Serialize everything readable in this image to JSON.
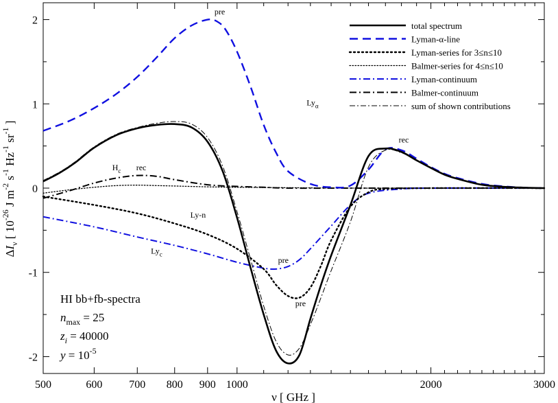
{
  "chart_data": {
    "type": "line",
    "title": "",
    "xlabel": "ν [ GHz ]",
    "ylabel": "ΔIν [ 10^-26 J m^-2 s^-1 Hz^-1 sr^-1 ]",
    "x_scale": "log",
    "xlim": [
      500,
      3000
    ],
    "ylim": [
      -2.2,
      2.2
    ],
    "x_ticks": [
      {
        "value": 500,
        "label": "500"
      },
      {
        "value": 600,
        "label": "600"
      },
      {
        "value": 700,
        "label": "700"
      },
      {
        "value": 800,
        "label": "800"
      },
      {
        "value": 900,
        "label": "900"
      },
      {
        "value": 1000,
        "label": "1000"
      },
      {
        "value": 2000,
        "label": "2000"
      },
      {
        "value": 3000,
        "label": "3000"
      }
    ],
    "x_minor_ticks": [
      1100,
      1200,
      1300,
      1400,
      1500,
      1600,
      1700,
      1800,
      1900,
      2100,
      2200,
      2300,
      2400,
      2500,
      2600,
      2700,
      2800,
      2900
    ],
    "y_ticks": [
      {
        "value": 2,
        "label": "2"
      },
      {
        "value": 1,
        "label": "1"
      },
      {
        "value": 0,
        "label": "0"
      },
      {
        "value": -1,
        "label": "-1"
      },
      {
        "value": -2,
        "label": "-2"
      }
    ],
    "y_minor_ticks": [
      -1.5,
      -0.5,
      0.5,
      1.5
    ],
    "series": [
      {
        "name": "total spectrum",
        "color": "#000000",
        "style": "solid-thick",
        "x": [
          500,
          530,
          560,
          600,
          650,
          700,
          750,
          800,
          850,
          900,
          950,
          1000,
          1050,
          1100,
          1150,
          1200,
          1250,
          1300,
          1350,
          1400,
          1500,
          1600,
          1700,
          1800,
          1900,
          2000,
          2100,
          2200,
          2400,
          2600,
          2800,
          3000
        ],
        "y": [
          0.08,
          0.18,
          0.3,
          0.48,
          0.63,
          0.71,
          0.75,
          0.76,
          0.72,
          0.55,
          0.2,
          -0.35,
          -0.95,
          -1.5,
          -1.93,
          -2.08,
          -1.98,
          -1.55,
          -1.15,
          -0.8,
          -0.2,
          0.38,
          0.47,
          0.43,
          0.33,
          0.24,
          0.16,
          0.11,
          0.04,
          0.015,
          0.005,
          0.0
        ]
      },
      {
        "name": "Lyman-α-line",
        "color": "#1010e0",
        "style": "dashed",
        "x": [
          500,
          550,
          600,
          650,
          700,
          750,
          800,
          850,
          900,
          930,
          960,
          1000,
          1050,
          1100,
          1150,
          1200,
          1300,
          1400,
          1500,
          1600,
          1700,
          1800,
          1900,
          2000,
          2100,
          2200,
          2400,
          2600,
          2800,
          3000
        ],
        "y": [
          0.68,
          0.8,
          0.95,
          1.12,
          1.32,
          1.55,
          1.78,
          1.93,
          2.0,
          1.98,
          1.88,
          1.62,
          1.2,
          0.75,
          0.42,
          0.2,
          0.05,
          0.01,
          0.03,
          0.22,
          0.46,
          0.45,
          0.35,
          0.25,
          0.17,
          0.12,
          0.05,
          0.02,
          0.005,
          0.0
        ]
      },
      {
        "name": "Lyman-series for 3≤n≤10",
        "color": "#000000",
        "style": "dotted-bold",
        "x": [
          500,
          600,
          700,
          800,
          900,
          1000,
          1100,
          1150,
          1200,
          1250,
          1300,
          1350,
          1400,
          1500,
          1600,
          1700,
          2000,
          3000
        ],
        "y": [
          -0.1,
          -0.2,
          -0.3,
          -0.42,
          -0.55,
          -0.72,
          -0.96,
          -1.15,
          -1.28,
          -1.3,
          -1.18,
          -0.92,
          -0.62,
          -0.22,
          -0.05,
          -0.01,
          0.0,
          0.0
        ]
      },
      {
        "name": "Balmer-series for 4≤n≤10",
        "color": "#000000",
        "style": "dotted-fine",
        "x": [
          500,
          550,
          600,
          650,
          700,
          750,
          800,
          900,
          1000,
          1200,
          1500,
          2000,
          3000
        ],
        "y": [
          -0.06,
          -0.02,
          0.01,
          0.03,
          0.035,
          0.03,
          0.025,
          0.015,
          0.01,
          0.005,
          0.0,
          0.0,
          0.0
        ]
      },
      {
        "name": "Lyman-continuum",
        "color": "#1010e0",
        "style": "dash-dot",
        "x": [
          500,
          600,
          700,
          800,
          900,
          1000,
          1100,
          1150,
          1200,
          1250,
          1300,
          1400,
          1500,
          1600,
          1800,
          2000,
          3000
        ],
        "y": [
          -0.34,
          -0.46,
          -0.58,
          -0.68,
          -0.78,
          -0.88,
          -0.95,
          -0.96,
          -0.93,
          -0.85,
          -0.72,
          -0.45,
          -0.2,
          -0.06,
          -0.01,
          0.0,
          0.0
        ]
      },
      {
        "name": "Balmer-continuum",
        "color": "#000000",
        "style": "dash-dot",
        "x": [
          500,
          550,
          600,
          650,
          700,
          750,
          800,
          900,
          1000,
          1100,
          1200,
          1500,
          2000,
          3000
        ],
        "y": [
          -0.12,
          -0.03,
          0.06,
          0.12,
          0.15,
          0.14,
          0.1,
          0.04,
          0.02,
          0.01,
          0.0,
          0.0,
          0.0,
          0.0
        ]
      },
      {
        "name": "sum of shown contributions",
        "color": "#000000",
        "style": "dash-dot-thin",
        "x": [
          500,
          530,
          560,
          600,
          650,
          700,
          750,
          800,
          850,
          900,
          950,
          1000,
          1050,
          1100,
          1150,
          1200,
          1250,
          1300,
          1350,
          1400,
          1500,
          1600,
          1700,
          1800,
          1900,
          2000,
          2100,
          2200,
          2400,
          2600,
          2800,
          3000
        ],
        "y": [
          0.09,
          0.19,
          0.31,
          0.49,
          0.64,
          0.72,
          0.77,
          0.79,
          0.76,
          0.6,
          0.26,
          -0.28,
          -0.85,
          -1.4,
          -1.82,
          -1.98,
          -1.9,
          -1.62,
          -1.3,
          -0.98,
          -0.4,
          0.25,
          0.45,
          0.42,
          0.33,
          0.24,
          0.16,
          0.11,
          0.04,
          0.015,
          0.005,
          0.0
        ]
      }
    ],
    "annotations": [
      {
        "text": "pre",
        "x": 940,
        "y": 2.06
      },
      {
        "text": "Ly",
        "sub": "α",
        "x": 1310,
        "y": 0.98
      },
      {
        "text": "rec",
        "x": 1815,
        "y": 0.54
      },
      {
        "text": "H",
        "sub": "c",
        "x": 650,
        "y": 0.21
      },
      {
        "text": "rec",
        "x": 710,
        "y": 0.21
      },
      {
        "text": "Ly-n",
        "x": 870,
        "y": -0.35
      },
      {
        "text": "Ly",
        "sub": "c",
        "x": 750,
        "y": -0.78
      },
      {
        "text": "pre",
        "x": 1180,
        "y": -0.89
      },
      {
        "text": "pre",
        "x": 1255,
        "y": -1.4
      }
    ],
    "legend_position": "top-right"
  },
  "info_box": {
    "line1": "HI bb+fb-spectra",
    "nmax_var": "n",
    "nmax_sub": "max",
    "nmax_value": " = 25",
    "zi_var": "z",
    "zi_sub": "i",
    "zi_value": " = 40000",
    "y_var": "y",
    "y_value": " = 10",
    "y_exp": "-5"
  },
  "ylabel_parts": {
    "delta": "Δ",
    "var": "I",
    "sub": "ν",
    "open": " [ 10",
    "exp1": "-26",
    "t1": " J m",
    "exp2": "-2",
    "t2": " s",
    "exp3": "-1",
    "t3": " Hz",
    "exp4": "-1",
    "t4": " sr",
    "exp5": "-1",
    "close": " ]"
  }
}
